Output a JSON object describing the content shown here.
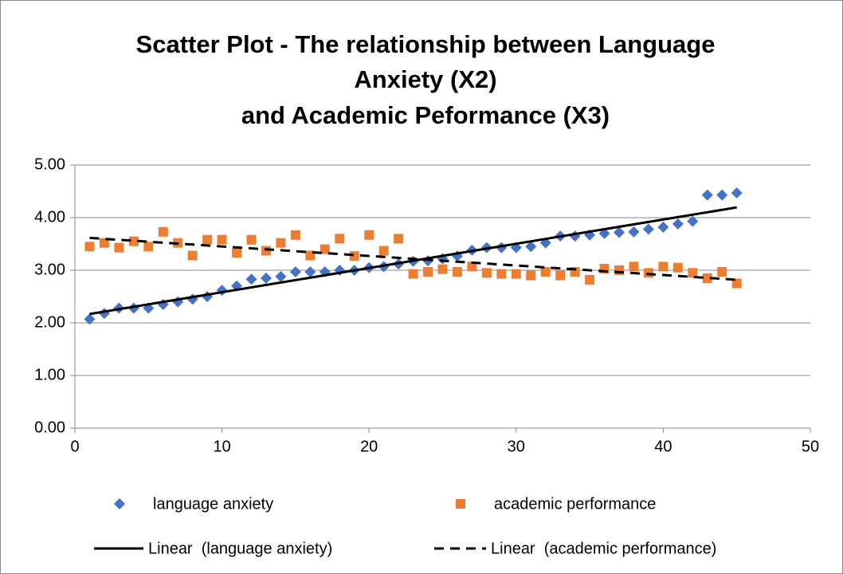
{
  "chart_data": {
    "type": "scatter",
    "title": [
      "Scatter Plot - The relationship between Language",
      "Anxiety (X2)",
      "and Academic Peformance (X3)"
    ],
    "x": [
      1,
      2,
      3,
      4,
      5,
      6,
      7,
      8,
      9,
      10,
      11,
      12,
      13,
      14,
      15,
      16,
      17,
      18,
      19,
      20,
      21,
      22,
      23,
      24,
      25,
      26,
      27,
      28,
      29,
      30,
      31,
      32,
      33,
      34,
      35,
      36,
      37,
      38,
      39,
      40,
      41,
      42,
      43,
      44,
      45
    ],
    "series": [
      {
        "name": "language anxiety",
        "color": "#4472c4",
        "marker": "diamond",
        "values": [
          2.07,
          2.18,
          2.28,
          2.28,
          2.28,
          2.35,
          2.4,
          2.45,
          2.5,
          2.62,
          2.7,
          2.83,
          2.85,
          2.88,
          2.97,
          2.97,
          2.97,
          3.0,
          3.0,
          3.05,
          3.07,
          3.12,
          3.17,
          3.18,
          3.22,
          3.27,
          3.38,
          3.43,
          3.43,
          3.43,
          3.45,
          3.52,
          3.65,
          3.65,
          3.67,
          3.7,
          3.72,
          3.73,
          3.78,
          3.82,
          3.88,
          3.93,
          4.43,
          4.43,
          4.47
        ]
      },
      {
        "name": "academic performance",
        "color": "#ed7d31",
        "marker": "square",
        "values": [
          3.45,
          3.52,
          3.43,
          3.55,
          3.45,
          3.73,
          3.52,
          3.28,
          3.58,
          3.58,
          3.33,
          3.58,
          3.37,
          3.52,
          3.67,
          3.28,
          3.4,
          3.6,
          3.27,
          3.67,
          3.37,
          3.6,
          2.93,
          2.97,
          3.02,
          2.97,
          3.07,
          2.95,
          2.93,
          2.93,
          2.9,
          2.97,
          2.9,
          2.97,
          2.82,
          3.03,
          3.0,
          3.07,
          2.95,
          3.07,
          3.05,
          2.95,
          2.85,
          2.97,
          2.75
        ]
      }
    ],
    "trendlines": [
      {
        "name": "Linear  (language anxiety)",
        "series": 0,
        "dash": false,
        "color": "#000000"
      },
      {
        "name": "Linear  (academic performance)",
        "series": 1,
        "dash": true,
        "color": "#000000"
      }
    ],
    "xlim": [
      0,
      50
    ],
    "xticks": [
      0,
      10,
      20,
      30,
      40,
      50
    ],
    "ylim": [
      0,
      5
    ],
    "yticks": [
      {
        "value": 0,
        "label": "0.00"
      },
      {
        "value": 1,
        "label": "1.00"
      },
      {
        "value": 2,
        "label": "2.00"
      },
      {
        "value": 3,
        "label": "3.00"
      },
      {
        "value": 4,
        "label": "4.00"
      },
      {
        "value": 5,
        "label": "5.00"
      }
    ],
    "grid": true
  }
}
